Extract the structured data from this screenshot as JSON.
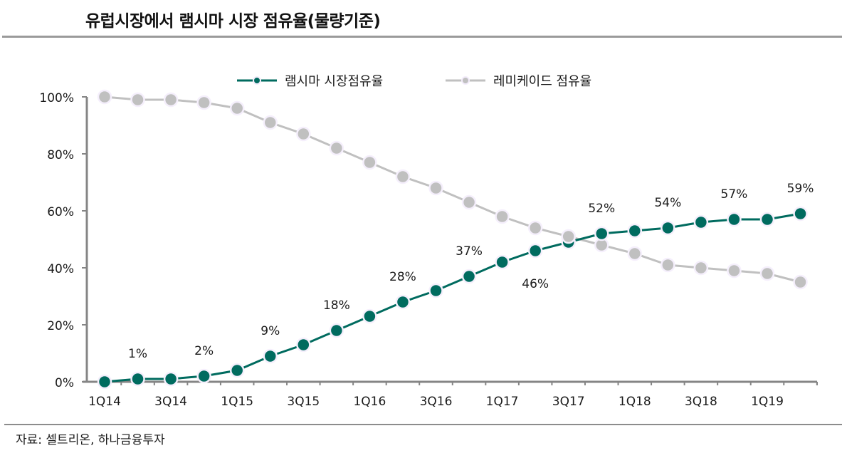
{
  "header": {
    "title": "유럽시장에서 램시마 시장 점유율(물량기준)"
  },
  "footer": {
    "source": "자료: 셀트리온, 하나금융투자"
  },
  "chart_data": {
    "type": "line",
    "title": "유럽시장에서 램시마 시장 점유율(물량기준)",
    "xlabel": "",
    "ylabel": "",
    "ylim": [
      0,
      100
    ],
    "yticks": [
      "0%",
      "20%",
      "40%",
      "60%",
      "80%",
      "100%"
    ],
    "ytick_values": [
      0,
      20,
      40,
      60,
      80,
      100
    ],
    "x": [
      "1Q14",
      "2Q14",
      "3Q14",
      "4Q14",
      "1Q15",
      "2Q15",
      "3Q15",
      "4Q15",
      "1Q16",
      "2Q16",
      "3Q16",
      "4Q16",
      "1Q17",
      "2Q17",
      "3Q17",
      "4Q17",
      "1Q18",
      "2Q18",
      "3Q18",
      "4Q18",
      "1Q19",
      "2Q19"
    ],
    "xtick_labels": [
      "1Q14",
      "3Q14",
      "1Q15",
      "3Q15",
      "1Q16",
      "3Q16",
      "1Q17",
      "3Q17",
      "1Q18",
      "3Q18",
      "1Q19"
    ],
    "grid": false,
    "legend_position": "top-center",
    "series": [
      {
        "name": "램시마 시장점유율",
        "color": "#006B5F",
        "values": [
          0,
          1,
          1,
          2,
          4,
          9,
          13,
          18,
          23,
          28,
          32,
          37,
          42,
          46,
          49,
          52,
          53,
          54,
          56,
          57,
          57,
          59
        ],
        "labels": [
          {
            "index": 1,
            "text": "1%",
            "pos": "above"
          },
          {
            "index": 3,
            "text": "2%",
            "pos": "above"
          },
          {
            "index": 5,
            "text": "9%",
            "pos": "above"
          },
          {
            "index": 7,
            "text": "18%",
            "pos": "above"
          },
          {
            "index": 9,
            "text": "28%",
            "pos": "above"
          },
          {
            "index": 11,
            "text": "37%",
            "pos": "above"
          },
          {
            "index": 13,
            "text": "46%",
            "pos": "below"
          },
          {
            "index": 15,
            "text": "52%",
            "pos": "above"
          },
          {
            "index": 17,
            "text": "54%",
            "pos": "above"
          },
          {
            "index": 19,
            "text": "57%",
            "pos": "above"
          },
          {
            "index": 21,
            "text": "59%",
            "pos": "above"
          }
        ]
      },
      {
        "name": "레미케이드 점유율",
        "color": "#C0C0C0",
        "values": [
          100,
          99,
          99,
          98,
          96,
          91,
          87,
          82,
          77,
          72,
          68,
          63,
          58,
          54,
          51,
          48,
          45,
          41,
          40,
          39,
          38,
          35
        ],
        "labels": []
      }
    ]
  }
}
